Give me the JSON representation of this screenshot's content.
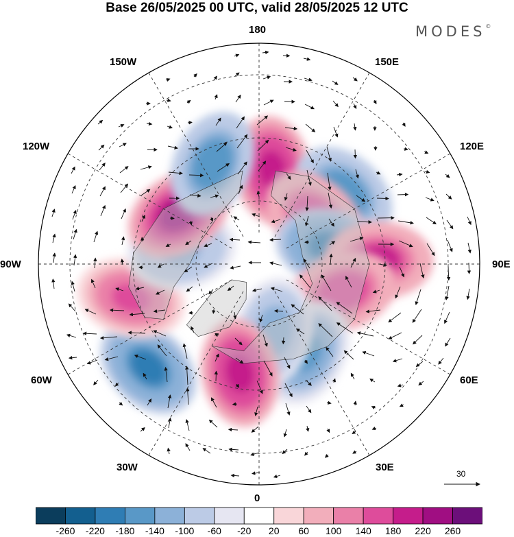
{
  "title": "Base 26/05/2025 00 UTC, valid 28/05/2025 12 UTC",
  "brand": "MODES",
  "brand_mark": "©",
  "longitude_labels": {
    "lon_180": "180",
    "lon_150E": "150E",
    "lon_120E": "120E",
    "lon_90E": "90E",
    "lon_60E": "60E",
    "lon_30E": "30E",
    "lon_0": "0",
    "lon_30W": "30W",
    "lon_60W": "60W",
    "lon_90W": "90W",
    "lon_120W": "120W",
    "lon_150W": "150W"
  },
  "wind_scale": {
    "label": "30",
    "arrow_icon": "right-arrow-icon"
  },
  "colorbar": {
    "tick_labels": [
      "-260",
      "-220",
      "-180",
      "-140",
      "-100",
      "-60",
      "-20",
      "20",
      "60",
      "100",
      "140",
      "180",
      "220",
      "260"
    ],
    "colors": [
      "#0b3d5c",
      "#135f8f",
      "#2f7db4",
      "#5998c7",
      "#8cb1d8",
      "#bccbe6",
      "#e6e6f2",
      "#ffffff",
      "#f9d6d9",
      "#f2aebb",
      "#ea80a8",
      "#de4c9b",
      "#c51d8b",
      "#a00e82",
      "#6c0f7a"
    ]
  },
  "map": {
    "projection": "north-polar-stereographic",
    "anomaly_centers": [
      {
        "lon": 172,
        "lat": 60,
        "value": 200
      },
      {
        "lon": 130,
        "lat": 55,
        "value": -160
      },
      {
        "lon": 130,
        "lat": 67,
        "value": 170
      },
      {
        "lon": 103,
        "lat": 67,
        "value": -190
      },
      {
        "lon": 92,
        "lat": 52,
        "value": 180
      },
      {
        "lon": 72,
        "lat": 62,
        "value": 170
      },
      {
        "lon": 28,
        "lat": 58,
        "value": -150
      },
      {
        "lon": 12,
        "lat": 68,
        "value": -130
      },
      {
        "lon": -10,
        "lat": 55,
        "value": 200
      },
      {
        "lon": -47,
        "lat": 42,
        "value": -190
      },
      {
        "lon": -75,
        "lat": 48,
        "value": 140
      },
      {
        "lon": -100,
        "lat": 65,
        "value": -110
      },
      {
        "lon": -122,
        "lat": 60,
        "value": 230
      },
      {
        "lon": -155,
        "lat": 55,
        "value": -170
      }
    ]
  }
}
